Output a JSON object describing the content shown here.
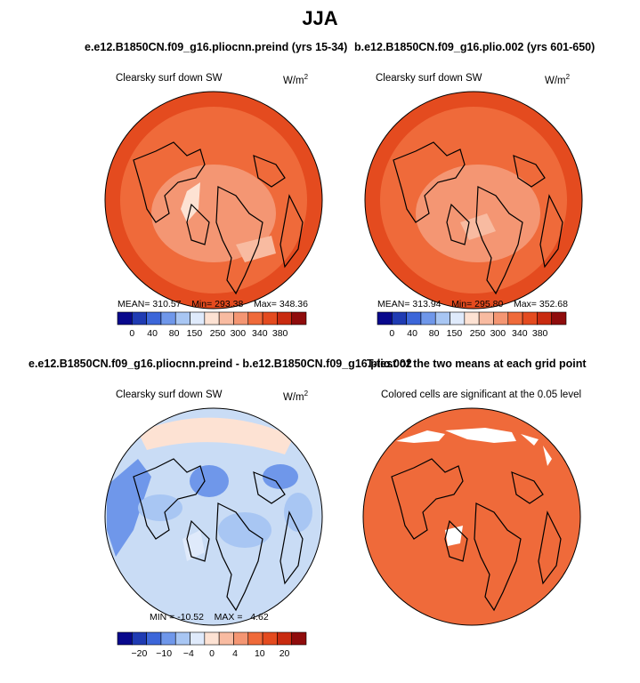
{
  "main_title": "JJA",
  "panels": [
    {
      "title": "e.e12.B1850CN.f09_g16.pliocnn.preind (yrs 15-34)",
      "variable": "Clearsky surf down SW",
      "units_base": "W/m",
      "units_exp": "2",
      "stats": {
        "mean_label": "MEAN=",
        "mean": "310.57",
        "min_label": "Min=",
        "min": "293.38",
        "max_label": "Max=",
        "max": "348.36"
      },
      "fill_color": "#ef6a3a",
      "colorbar_labels": [
        "0",
        "40",
        "80",
        "150",
        "250",
        "300",
        "340",
        "380"
      ]
    },
    {
      "title": "b.e12.B1850CN.f09_g16.plio.002 (yrs 601-650)",
      "variable": "Clearsky surf down SW",
      "units_base": "W/m",
      "units_exp": "2",
      "stats": {
        "mean_label": "MEAN=",
        "mean": "313.94",
        "min_label": "Min=",
        "min": "295.80",
        "max_label": "Max=",
        "max": "352.68"
      },
      "fill_color": "#ef6a3a",
      "colorbar_labels": [
        "0",
        "40",
        "80",
        "150",
        "250",
        "300",
        "340",
        "380"
      ]
    },
    {
      "title": "e.e12.B1850CN.f09_g16.pliocnn.preind - b.e12.B1850CN.f09_g16.plio.002",
      "variable": "Clearsky surf down SW",
      "units_base": "W/m",
      "units_exp": "2",
      "stats": {
        "min_label": "MIN =",
        "min": "-10.52",
        "max_label": "MAX =",
        "max": "4.62"
      },
      "fill_color": "#c9dcf5",
      "colorbar_labels": [
        "−20",
        "−10",
        "−4",
        "0",
        "4",
        "10",
        "20"
      ]
    },
    {
      "title": "T-test of the two means at each grid point",
      "variable": "Colored cells are significant at the 0.05 level",
      "fill_color": "#ef6a3a"
    }
  ],
  "colorbars": {
    "abs_colors": [
      "#08088c",
      "#1f3bb3",
      "#3c66d9",
      "#6f97ea",
      "#a8c6f3",
      "#dfeafb",
      "#fde2d3",
      "#f8bba1",
      "#f49673",
      "#ef6a3a",
      "#e44b1f",
      "#c92b10",
      "#8f0c0c"
    ],
    "diff_colors": [
      "#08088c",
      "#1f3bb3",
      "#3c66d9",
      "#6f97ea",
      "#a8c6f3",
      "#dfeafb",
      "#fde2d3",
      "#f8bba1",
      "#f49673",
      "#ef6a3a",
      "#e44b1f",
      "#c92b10",
      "#8f0c0c"
    ]
  },
  "chart_data": [
    {
      "type": "heatmap",
      "title": "e.e12.B1850CN.f09_g16.pliocnn.preind (yrs 15-34)",
      "variable": "Clearsky surf down SW",
      "units": "W/m2",
      "mean": 310.57,
      "min": 293.38,
      "max": 348.36,
      "levels": [
        0,
        40,
        80,
        150,
        250,
        300,
        340,
        380
      ]
    },
    {
      "type": "heatmap",
      "title": "b.e12.B1850CN.f09_g16.plio.002 (yrs 601-650)",
      "variable": "Clearsky surf down SW",
      "units": "W/m2",
      "mean": 313.94,
      "min": 295.8,
      "max": 352.68,
      "levels": [
        0,
        40,
        80,
        150,
        250,
        300,
        340,
        380
      ]
    },
    {
      "type": "heatmap",
      "title": "e.e12.B1850CN.f09_g16.pliocnn.preind - b.e12.B1850CN.f09_g16.plio.002",
      "variable": "Clearsky surf down SW",
      "units": "W/m2",
      "min": -10.52,
      "max": 4.62,
      "levels": [
        -20,
        -10,
        -4,
        0,
        4,
        10,
        20
      ]
    },
    {
      "type": "heatmap",
      "title": "T-test of the two means at each grid point",
      "note": "Colored cells are significant at the 0.05 level"
    }
  ]
}
